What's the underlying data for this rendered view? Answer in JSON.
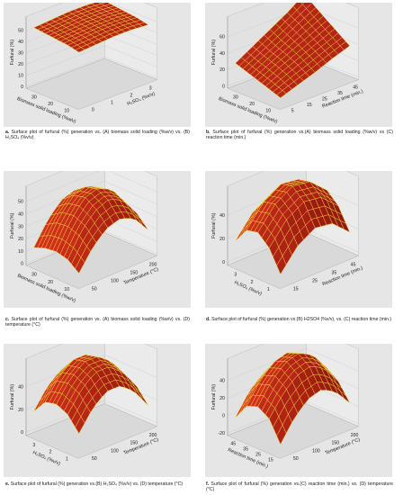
{
  "colors": {
    "background": "#e6e6e6",
    "floor": "#d9d9d9",
    "surface_light": "#d0301c",
    "surface_dark": "#8c150c",
    "grid_line": "#f3d93a",
    "axis_text": "#222222"
  },
  "chart_data": [
    {
      "type": "surface",
      "id": "a",
      "zlabel": "Furfural (%)",
      "xlabel": "Biomass solid loading (%w/v)",
      "ylabel": "H₂SO₄ (%v/v)",
      "zticks": [
        "0",
        "10",
        "20",
        "30",
        "40",
        "50"
      ],
      "xticks": [
        "10",
        "20",
        "30"
      ],
      "yticks": [
        "0",
        "1",
        "2",
        "3"
      ],
      "zlim": [
        0,
        55
      ],
      "xlim": [
        5,
        33
      ],
      "ylim": [
        0,
        3.5
      ],
      "caption_letter": "a.",
      "caption": "Surface plot of furfural (%) generation vs. (A) biomass solid loading (%w/v) vs. (B) H₂SO₄ (%v/v)",
      "grid": [
        [
          41,
          42,
          43,
          43,
          42
        ],
        [
          43,
          44,
          45,
          45,
          44
        ],
        [
          44,
          45,
          46,
          46,
          45
        ],
        [
          45,
          46,
          47,
          47,
          46
        ],
        [
          46,
          47,
          48,
          48,
          47
        ]
      ]
    },
    {
      "type": "surface",
      "id": "b",
      "zlabel": "Furfural (%)",
      "xlabel": "Biomass solid loading (%w/v)",
      "ylabel": "Reaction time (min.)",
      "zticks": [
        "0",
        "20",
        "40",
        "60"
      ],
      "xticks": [
        "10",
        "20",
        "30"
      ],
      "yticks": [
        "5",
        "15",
        "25",
        "35",
        "45"
      ],
      "zlim": [
        0,
        70
      ],
      "xlim": [
        5,
        33
      ],
      "ylim": [
        5,
        45
      ],
      "caption_letter": "b.",
      "caption": "Surface plot of furfural (%) generation vs.(A) biomass solid loading (%w/v) vs (C) reaction time (min.)",
      "grid": [
        [
          8,
          14,
          20,
          27,
          33
        ],
        [
          12,
          20,
          27,
          34,
          41
        ],
        [
          16,
          25,
          33,
          41,
          49
        ],
        [
          20,
          29,
          38,
          48,
          57
        ],
        [
          24,
          34,
          44,
          54,
          66
        ]
      ]
    },
    {
      "type": "surface",
      "id": "c",
      "zlabel": "Furfural (%)",
      "xlabel": "Biomass solid loading (%w/v)",
      "ylabel": "Temperature (°C)",
      "zticks": [
        "0",
        "10",
        "20",
        "30",
        "40",
        "50"
      ],
      "xticks": [
        "10",
        "20",
        "30"
      ],
      "yticks": [
        "50",
        "100",
        "150",
        "200"
      ],
      "zlim": [
        0,
        55
      ],
      "xlim": [
        5,
        33
      ],
      "ylim": [
        40,
        210
      ],
      "caption_letter": "c.",
      "caption": "Surface plot of furfural (%) generation vs. (A) biomass solid loading (%w/v) vs. (D) temperature (°C)",
      "grid": [
        [
          8,
          22,
          31,
          34,
          30,
          18
        ],
        [
          14,
          30,
          40,
          44,
          39,
          26
        ],
        [
          16,
          33,
          45,
          48,
          43,
          30
        ],
        [
          15,
          32,
          43,
          46,
          41,
          28
        ],
        [
          12,
          27,
          37,
          40,
          35,
          24
        ]
      ]
    },
    {
      "type": "surface",
      "id": "d",
      "zlabel": "Furfural (%)",
      "xlabel": "H₂SO₄ (%v/v)",
      "ylabel": "Reaction time (min.)",
      "zticks": [
        "0",
        "20",
        "40"
      ],
      "xticks": [
        "1",
        "2",
        "3"
      ],
      "yticks": [
        "15",
        "25",
        "35",
        "45"
      ],
      "zlim": [
        -10,
        50
      ],
      "xlim": [
        0.5,
        3.5
      ],
      "ylim": [
        5,
        50
      ],
      "caption_letter": "d.",
      "caption": "Surface plot of furfural (%) generation vs.(B) H2SO4 (%v/v), vs. (C) reaction time (min.)",
      "grid": [
        [
          -2,
          14,
          22,
          20,
          8
        ],
        [
          14,
          30,
          38,
          36,
          24
        ],
        [
          22,
          38,
          46,
          44,
          32
        ],
        [
          20,
          36,
          44,
          42,
          30
        ],
        [
          8,
          24,
          32,
          30,
          18
        ]
      ]
    },
    {
      "type": "surface",
      "id": "e",
      "zlabel": "Furfural (%)",
      "xlabel": "H₂SO₄ (%v/v)",
      "ylabel": "Temperature (°C)",
      "zticks": [
        "0",
        "20",
        "40"
      ],
      "xticks": [
        "1",
        "2",
        "3"
      ],
      "yticks": [
        "50",
        "100",
        "150",
        "200"
      ],
      "zlim": [
        -5,
        50
      ],
      "xlim": [
        0.5,
        3.5
      ],
      "ylim": [
        40,
        210
      ],
      "caption_letter": "e.",
      "caption": "Surface plot of furfural (%) generation vs.(B) H₂SO₄ (%v/v) vs. (D) temperature (°C)",
      "grid": [
        [
          10,
          24,
          32,
          32,
          24,
          10
        ],
        [
          20,
          34,
          42,
          42,
          34,
          20
        ],
        [
          24,
          38,
          46,
          46,
          38,
          24
        ],
        [
          22,
          36,
          44,
          44,
          36,
          22
        ],
        [
          12,
          26,
          34,
          34,
          26,
          12
        ]
      ]
    },
    {
      "type": "surface",
      "id": "f",
      "zlabel": "Furfural (%)",
      "xlabel": "Reaction time (min.)",
      "ylabel": "Temperature (°C)",
      "zticks": [
        "-20",
        "0",
        "20",
        "40"
      ],
      "xticks": [
        "15",
        "25",
        "35",
        "45"
      ],
      "yticks": [
        "50",
        "100",
        "150",
        "200"
      ],
      "zlim": [
        -25,
        50
      ],
      "xlim": [
        5,
        50
      ],
      "ylim": [
        40,
        210
      ],
      "caption_letter": "f.",
      "caption": "Surface plot of furfural (%) generation vs.(C) reaction time (min.) vs. (D) temperature (°C)",
      "grid": [
        [
          -15,
          5,
          18,
          22,
          14,
          -2
        ],
        [
          5,
          24,
          36,
          40,
          32,
          14
        ],
        [
          12,
          32,
          44,
          48,
          40,
          22
        ],
        [
          8,
          28,
          40,
          44,
          36,
          18
        ],
        [
          -8,
          12,
          24,
          28,
          20,
          2
        ]
      ]
    }
  ]
}
